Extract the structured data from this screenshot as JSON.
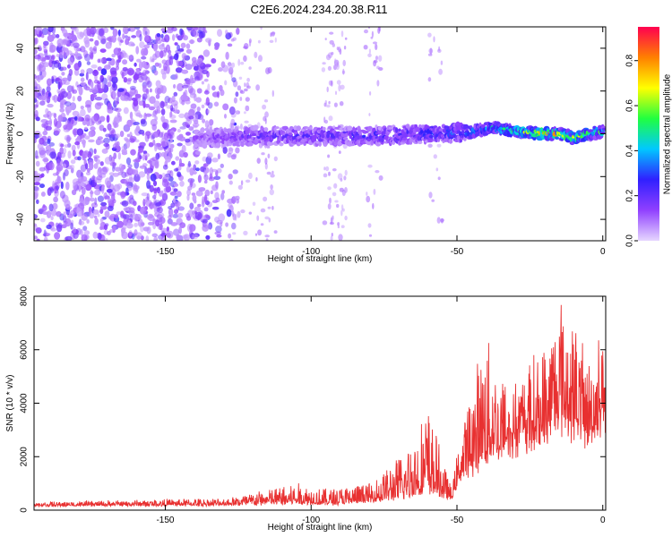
{
  "title": "C2E6.2024.234.20.38.R11",
  "chart_data": [
    {
      "type": "heatmap",
      "xlabel": "Height of straight line (km)",
      "ylabel": "Frequency (Hz)",
      "xlim": [
        -195,
        1
      ],
      "ylim": [
        -50,
        50
      ],
      "xticks": [
        -150,
        -100,
        -50,
        0
      ],
      "yticks": [
        -40,
        -20,
        0,
        20,
        40
      ],
      "colorbar": {
        "label": "Normalized spectral amplitude",
        "range": [
          0,
          0.95
        ],
        "ticks": [
          0.0,
          0.2,
          0.4,
          0.6,
          0.8
        ],
        "colors": [
          "#e6d6ff",
          "#9040ff",
          "#3020ff",
          "#00c8ff",
          "#20ff40",
          "#ffff00",
          "#ff8000",
          "#ff0050"
        ]
      },
      "ridge": {
        "x": [
          -140,
          -120,
          -100,
          -80,
          -60,
          -45,
          -38,
          -30,
          -20,
          -15,
          -10,
          -5,
          0
        ],
        "freq": [
          -2,
          -1,
          -1,
          -1,
          0,
          1,
          3,
          1,
          0,
          0,
          -2,
          0,
          1
        ],
        "amplitude": [
          0.15,
          0.25,
          0.25,
          0.3,
          0.35,
          0.45,
          0.5,
          0.7,
          0.9,
          0.85,
          0.8,
          0.7,
          0.6
        ]
      }
    },
    {
      "type": "line",
      "xlabel": "Height of straight line (km)",
      "ylabel": "SNR (10 * v/v)",
      "xlim": [
        -195,
        1
      ],
      "ylim": [
        0,
        8000
      ],
      "xticks": [
        -150,
        -100,
        -50,
        0
      ],
      "yticks": [
        0,
        2000,
        4000,
        6000,
        8000
      ],
      "series_color": "#e83030",
      "envelope": {
        "x": [
          -195,
          -130,
          -105,
          -95,
          -80,
          -68,
          -60,
          -55,
          -52,
          -48,
          -40,
          -35,
          -30,
          -20,
          -15,
          -10,
          -5,
          0
        ],
        "baseline": [
          150,
          180,
          250,
          200,
          300,
          450,
          700,
          500,
          400,
          1300,
          1800,
          2200,
          2400,
          2800,
          3400,
          3000,
          2600,
          3500
        ],
        "peak": [
          300,
          450,
          1000,
          800,
          1000,
          2200,
          3900,
          2000,
          800,
          3200,
          6800,
          5000,
          4800,
          6000,
          8000,
          7000,
          5500,
          6500
        ]
      }
    }
  ]
}
